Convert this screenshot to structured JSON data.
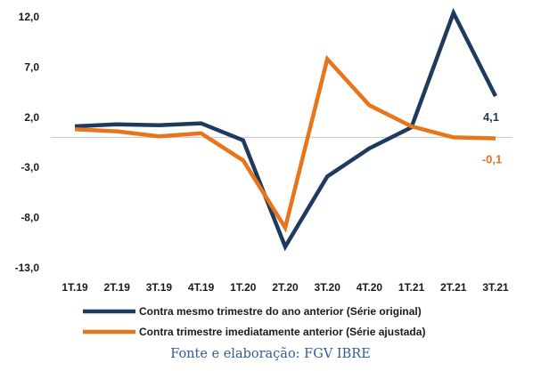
{
  "chart_data": {
    "type": "line",
    "categories": [
      "1T.19",
      "2T.19",
      "3T.19",
      "4T.19",
      "1T.20",
      "2T.20",
      "3T.20",
      "4T.20",
      "1T.21",
      "2T.21",
      "3T.21"
    ],
    "yticks": [
      "12,0",
      "7,0",
      "2,0",
      "-3,0",
      "-8,0",
      "-13,0"
    ],
    "ylim": [
      -13,
      12
    ],
    "grid": "baseline at zero",
    "series": [
      {
        "name": "Contra mesmo trimestre do ano anterior (Série original)",
        "color": "#1f3a5f",
        "values": [
          1.1,
          1.3,
          1.2,
          1.4,
          -0.3,
          -10.9,
          -3.9,
          -1.1,
          1.0,
          12.4,
          4.1
        ],
        "end_label": "4,1"
      },
      {
        "name": "Contra trimestre imediatamente anterior (Série ajustada)",
        "color": "#e8741c",
        "values": [
          0.8,
          0.6,
          0.1,
          0.4,
          -2.3,
          -9.0,
          7.8,
          3.2,
          1.1,
          0.0,
          -0.1
        ],
        "end_label": "-0,1"
      }
    ],
    "legend_position": "bottom"
  },
  "source": "Fonte e elaboração: FGV IBRE"
}
